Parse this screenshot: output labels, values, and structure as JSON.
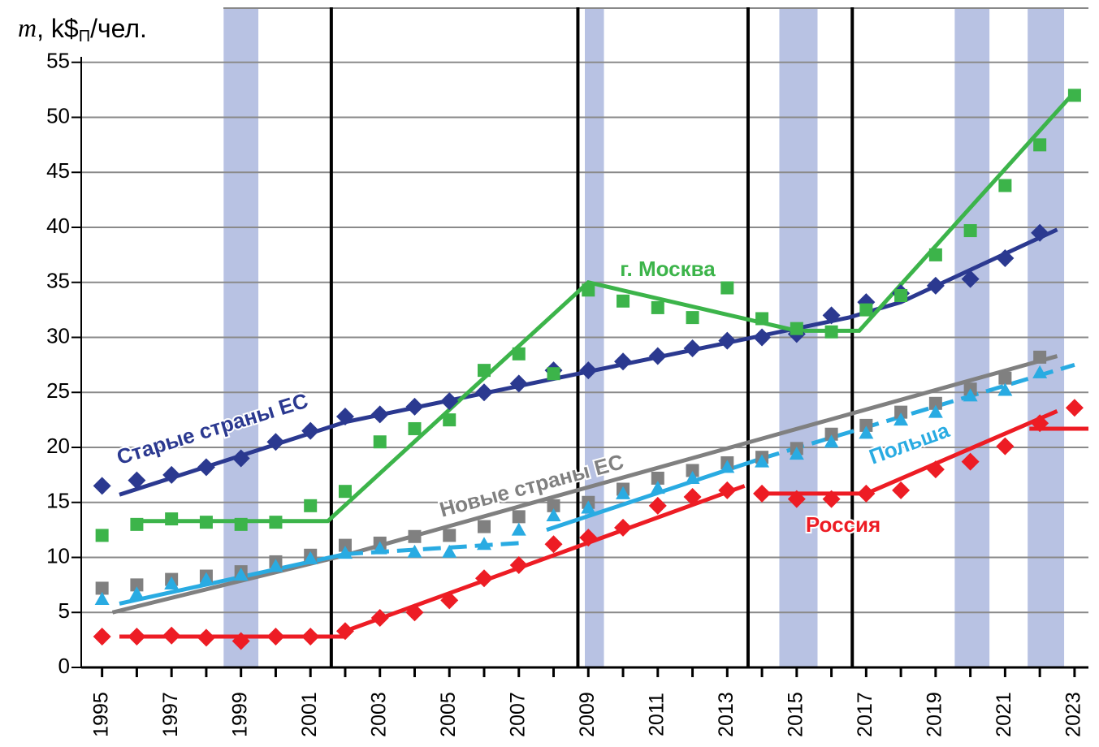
{
  "chart_data": {
    "type": "scatter",
    "y_label": [
      "m",
      ", k$",
      "П",
      "/чел."
    ],
    "x": [
      1995,
      1996,
      1997,
      1998,
      1999,
      2000,
      2001,
      2002,
      2003,
      2004,
      2005,
      2006,
      2007,
      2008,
      2009,
      2010,
      2011,
      2012,
      2013,
      2014,
      2015,
      2016,
      2017,
      2018,
      2019,
      2020,
      2021,
      2022,
      2023
    ],
    "xlim": [
      1994.4,
      2023.4
    ],
    "xticks": [
      1995,
      1997,
      1999,
      2001,
      2003,
      2005,
      2007,
      2009,
      2011,
      2013,
      2015,
      2017,
      2019,
      2021,
      2023
    ],
    "ylim": [
      0,
      60
    ],
    "yticks": [
      0,
      5,
      10,
      15,
      20,
      25,
      30,
      35,
      40,
      45,
      50,
      55
    ],
    "grid": true,
    "shaded_periods": [
      [
        1998.5,
        1999.5
      ],
      [
        2008.9,
        2009.45
      ],
      [
        2014.5,
        2015.6
      ],
      [
        2019.55,
        2020.55
      ],
      [
        2021.65,
        2022.7
      ]
    ],
    "vlines": [
      2001.6,
      2008.7,
      2013.6,
      2016.6
    ],
    "series": [
      {
        "name": "Старые страны ЕС",
        "color": "#2b3990",
        "marker": "diamond",
        "values": [
          16.5,
          17,
          17.5,
          18.2,
          19,
          20.5,
          21.5,
          22.8,
          23,
          23.7,
          24.2,
          25,
          25.8,
          27,
          27,
          27.8,
          28.3,
          29,
          29.7,
          30,
          30.3,
          32,
          33.2,
          34,
          34.7,
          35.3,
          37.2,
          39.5,
          null
        ],
        "trend": [
          {
            "x": [
              1995.5,
              2002,
              2016.5,
              2018,
              2022.5
            ],
            "y": [
              15.7,
              22.3,
              31.8,
              33.2,
              39.8
            ],
            "dashed": false
          }
        ]
      },
      {
        "name": "г. Москва",
        "color": "#3cb44a",
        "marker": "square",
        "values": [
          12,
          13,
          13.5,
          13.2,
          13,
          13.2,
          14.7,
          16,
          20.5,
          21.7,
          22.5,
          27,
          28.5,
          26.7,
          34.3,
          33.3,
          32.7,
          31.8,
          34.5,
          31.7,
          30.8,
          30.5,
          32.5,
          33.8,
          37.5,
          39.7,
          43.8,
          47.5,
          52
        ],
        "trend": [
          {
            "x": [
              1996,
              2001.5,
              2009,
              2015,
              2016.8,
              2023
            ],
            "y": [
              13.3,
              13.3,
              35,
              30.6,
              30.6,
              52.3
            ],
            "dashed": false
          }
        ]
      },
      {
        "name": "Новые страны ЕС",
        "color": "#808080",
        "marker": "square",
        "values": [
          7.2,
          7.5,
          8,
          8.3,
          8.7,
          9.6,
          10.2,
          11.1,
          11.3,
          11.9,
          12,
          12.8,
          13.7,
          14.7,
          15,
          16.2,
          17.2,
          17.9,
          18.6,
          19.1,
          19.9,
          21.2,
          22,
          23.2,
          24,
          25.3,
          26.3,
          28.2,
          null
        ],
        "trend": [
          {
            "x": [
              1995.3,
              2002,
              2022.5
            ],
            "y": [
              5,
              10.2,
              28.3
            ],
            "dashed": false
          }
        ]
      },
      {
        "name": "Польша",
        "color": "#29abe2",
        "marker": "triangle",
        "values": [
          6.2,
          6.7,
          7.6,
          8,
          8.4,
          9.2,
          9.9,
          10.4,
          10.8,
          10.5,
          10.5,
          11.2,
          12.5,
          13.8,
          14.5,
          15.8,
          16.3,
          17.2,
          18.2,
          18.7,
          19.4,
          20.5,
          21.3,
          22.5,
          23.2,
          24.7,
          25.2,
          26.8,
          null
        ],
        "trend": [
          {
            "x": [
              1995.5,
              2002
            ],
            "y": [
              5.8,
              10.3
            ],
            "dashed": false
          },
          {
            "x": [
              2002,
              2007
            ],
            "y": [
              10.3,
              11.3
            ],
            "dashed": true
          },
          {
            "x": [
              2007.8,
              2014
            ],
            "y": [
              12.5,
              19
            ],
            "dashed": false
          },
          {
            "x": [
              2014,
              2023
            ],
            "y": [
              19,
              27.5
            ],
            "dashed": true
          }
        ]
      },
      {
        "name": "Россия",
        "color": "#ed1c24",
        "marker": "diamond",
        "values": [
          2.8,
          2.8,
          2.9,
          2.7,
          2.4,
          2.8,
          2.8,
          3.3,
          4.5,
          5,
          6.1,
          8.1,
          9.3,
          11.2,
          11.8,
          12.7,
          14.7,
          15.5,
          16.1,
          15.8,
          15.3,
          15.3,
          15.8,
          16.1,
          18,
          18.7,
          20.1,
          22.2,
          23.6
        ],
        "trend": [
          {
            "x": [
              1995.5,
              2002
            ],
            "y": [
              2.8,
              2.8
            ],
            "dashed": false
          },
          {
            "x": [
              2002,
              2013.5
            ],
            "y": [
              3.3,
              16.5
            ],
            "dashed": false
          },
          {
            "x": [
              2013.8,
              2017
            ],
            "y": [
              15.8,
              15.8
            ],
            "dashed": false
          },
          {
            "x": [
              2017,
              2022.5
            ],
            "y": [
              15.8,
              23.3
            ],
            "dashed": false
          },
          {
            "x": [
              2021.7,
              2023.4
            ],
            "y": [
              21.7,
              21.7
            ],
            "dashed": false
          }
        ]
      }
    ]
  }
}
